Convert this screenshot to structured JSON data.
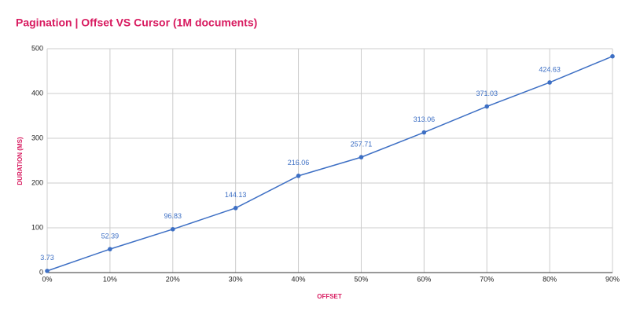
{
  "chart_data": {
    "type": "line",
    "title": "Pagination | Offset VS Cursor (1M documents)",
    "x_label": "OFFSET",
    "y_label": "DURATION (MS)",
    "categories": [
      "0%",
      "10%",
      "20%",
      "30%",
      "40%",
      "50%",
      "60%",
      "70%",
      "80%",
      "90%"
    ],
    "series": [
      {
        "name": "Duration",
        "color": "#3d6fc4",
        "values": [
          3.73,
          52.39,
          96.83,
          144.13,
          216.06,
          257.71,
          313.06,
          371.03,
          424.63,
          483
        ]
      }
    ],
    "ylim": [
      0,
      500
    ],
    "yticks": [
      0,
      100,
      200,
      300,
      400,
      500
    ],
    "grid": true
  }
}
